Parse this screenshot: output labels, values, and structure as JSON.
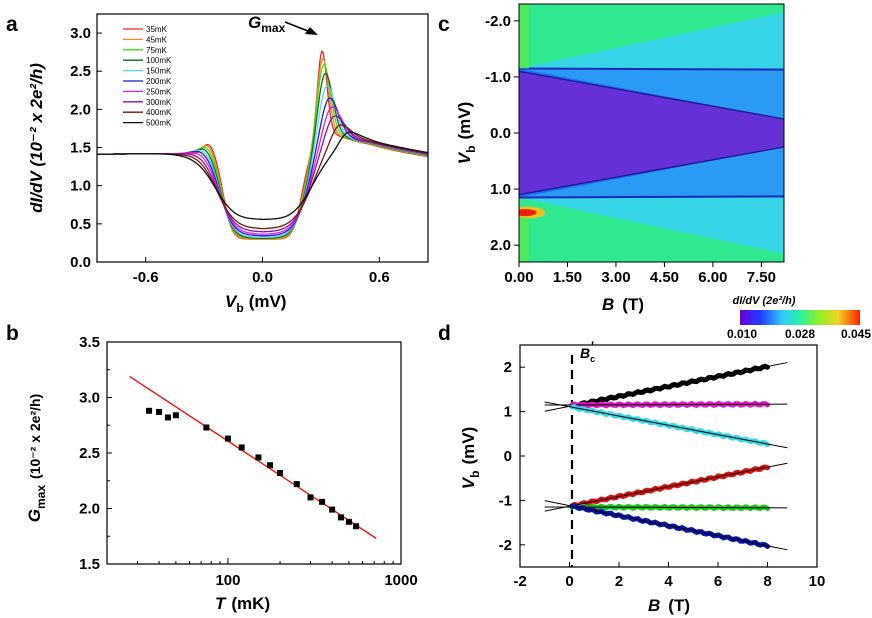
{
  "panel_labels": [
    "a",
    "b",
    "c",
    "d"
  ],
  "colors": {
    "temps": [
      "#e8281e",
      "#f08a1c",
      "#3ee01e",
      "#0a6e14",
      "#55d6ee",
      "#1e18d4",
      "#e020d8",
      "#8e10a0",
      "#7a1408",
      "#101010"
    ],
    "fit_line": "#ff0000",
    "d_series": [
      "#000000",
      "#e214c8",
      "#35d8e6",
      "#d80f0f",
      "#16c816",
      "#0a14a8"
    ],
    "cbar_stops": [
      "#6a00d8",
      "#1e3cff",
      "#32c8ff",
      "#28f0a0",
      "#8cf02a",
      "#f0d220",
      "#ff2000"
    ]
  },
  "chart_data": [
    {
      "panel": "a",
      "type": "line",
      "xlabel_var": "V",
      "xlabel_sub": "b",
      "xlabel_unit": "(mV)",
      "ylabel": "dI/dV (10⁻² x 2e²/h)",
      "xlim": [
        -0.85,
        0.85
      ],
      "ylim": [
        0.0,
        3.25
      ],
      "xticks": [
        "-0.6",
        "0.0",
        "0.6"
      ],
      "yticks": [
        "0.0",
        "0.5",
        "1.0",
        "1.5",
        "2.0",
        "2.5",
        "3.0"
      ],
      "annotation_main": "G",
      "annotation_sub": "max",
      "series": [
        {
          "name": "35mK",
          "peak": 2.86,
          "dip": 0.29,
          "peak_x": 0.305,
          "shoulder": 1.62,
          "zero": 0.3
        },
        {
          "name": "45mK",
          "peak": 2.78,
          "dip": 0.29,
          "peak_x": 0.308,
          "shoulder": 1.62,
          "zero": 0.3
        },
        {
          "name": "75mK",
          "peak": 2.72,
          "dip": 0.3,
          "peak_x": 0.312,
          "shoulder": 1.61,
          "zero": 0.31
        },
        {
          "name": "100mK",
          "peak": 2.62,
          "dip": 0.3,
          "peak_x": 0.318,
          "shoulder": 1.6,
          "zero": 0.31
        },
        {
          "name": "150mK",
          "peak": 2.47,
          "dip": 0.31,
          "peak_x": 0.325,
          "shoulder": 1.59,
          "zero": 0.32
        },
        {
          "name": "200mK",
          "peak": 2.32,
          "dip": 0.33,
          "peak_x": 0.335,
          "shoulder": 1.58,
          "zero": 0.34
        },
        {
          "name": "250mK",
          "peak": 2.21,
          "dip": 0.35,
          "peak_x": 0.345,
          "shoulder": 1.56,
          "zero": 0.36
        },
        {
          "name": "300mK",
          "peak": 2.1,
          "dip": 0.38,
          "peak_x": 0.355,
          "shoulder": 1.53,
          "zero": 0.39
        },
        {
          "name": "400mK",
          "peak": 1.97,
          "dip": 0.42,
          "peak_x": 0.38,
          "shoulder": 1.5,
          "zero": 0.43
        },
        {
          "name": "500mK",
          "peak": 1.86,
          "dip": 0.52,
          "peak_x": 0.42,
          "shoulder": 1.46,
          "zero": 0.55
        }
      ]
    },
    {
      "panel": "b",
      "type": "scatter",
      "xscale": "log",
      "xlabel_var": "T",
      "xlabel_unit": "(mK)",
      "ylabel": "G_max (10⁻² x 2e²/h)",
      "ylabel_main": "G",
      "ylabel_sub": "max",
      "ylabel_unit": "(10⁻² x 2e²/h)",
      "xlim": [
        20,
        1000
      ],
      "ylim": [
        1.5,
        3.5
      ],
      "xticks": [
        "100",
        "1000"
      ],
      "yticks": [
        "1.5",
        "2.0",
        "2.5",
        "3.0",
        "3.5"
      ],
      "x": [
        35,
        40,
        45,
        50,
        75,
        100,
        120,
        150,
        175,
        200,
        250,
        300,
        350,
        400,
        450,
        500,
        550
      ],
      "y": [
        2.88,
        2.87,
        2.82,
        2.84,
        2.73,
        2.63,
        2.55,
        2.46,
        2.39,
        2.32,
        2.22,
        2.1,
        2.06,
        1.99,
        1.92,
        1.88,
        1.84
      ],
      "fit": {
        "x": [
          27,
          720
        ],
        "y": [
          3.19,
          1.73
        ]
      }
    },
    {
      "panel": "c",
      "type": "heatmap",
      "xlabel_var": "B",
      "xlabel_unit": "(T)",
      "ylabel_var": "V",
      "ylabel_sub": "b",
      "ylabel_unit": "(mV)",
      "xlim": [
        0,
        8.2
      ],
      "ylim": [
        -2.3,
        2.3
      ],
      "xticks": [
        "0.00",
        "1.50",
        "3.00",
        "4.50",
        "6.00",
        "7.50"
      ],
      "yticks": [
        "-2.0",
        "-1.0",
        "0.0",
        "1.0",
        "2.0"
      ],
      "colorbar_title": "dI/dV (2e²/h)",
      "colorbar_ticks": [
        "0.010",
        "0.028",
        "0.045"
      ],
      "gap_edge_start": 1.15,
      "gap_edge_end_inner": 0.25,
      "gap_edge_end_outer": 2.0
    },
    {
      "panel": "d",
      "type": "scatter",
      "xlabel_var": "B",
      "xlabel_unit": "(T)",
      "ylabel_var": "V",
      "ylabel_sub": "b",
      "ylabel_unit": "(mV)",
      "xlim": [
        -2,
        10
      ],
      "ylim": [
        -2.5,
        2.5
      ],
      "xticks": [
        "-2",
        "0",
        "2",
        "4",
        "6",
        "8",
        "10"
      ],
      "yticks": [
        "-2",
        "-1",
        "0",
        "1",
        "2"
      ],
      "annotation_main": "B",
      "annotation_sub": "c",
      "annotation_prime": "′",
      "bc_prime": 0.1,
      "series": [
        {
          "name": "upper-outer",
          "v0": 1.13,
          "slope": 0.112
        },
        {
          "name": "upper-flat",
          "v0": 1.15,
          "slope": 0.002
        },
        {
          "name": "upper-inner",
          "v0": 1.1,
          "slope": -0.105
        },
        {
          "name": "lower-inner",
          "v0": -1.12,
          "slope": 0.11
        },
        {
          "name": "lower-flat",
          "v0": -1.15,
          "slope": -0.002
        },
        {
          "name": "lower-outer",
          "v0": -1.13,
          "slope": -0.113
        }
      ],
      "fit_range": [
        -1.0,
        8.8
      ],
      "fit_x0": 0.1
    }
  ]
}
